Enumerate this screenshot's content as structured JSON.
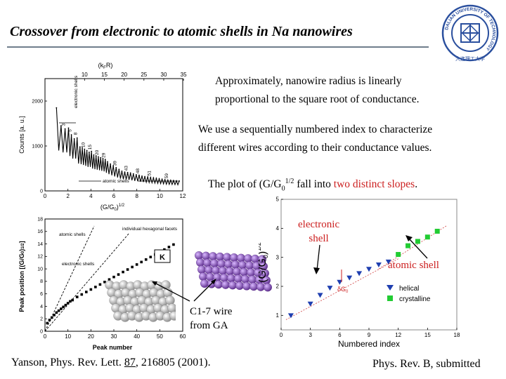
{
  "title": "Crossover from electronic to atomic shells in Na nanowires",
  "logo": {
    "name": "dalian-university-of-technology-seal",
    "ring_text": "DALIAN UNIVERSITY OF TECHNOLOGY",
    "chinese_text": "大连理工大学",
    "color": "#2a4f9e"
  },
  "paragraphs": {
    "p1_line1": "Approximately, nanowire radius is linearly",
    "p1_line2": "proportional to the square root of conductance.",
    "p2_line1": "We use a sequentially numbered index to characterize",
    "p2_line2": "different wires according to their conductance values.",
    "p3_a": "The plot of (G/G",
    "p3_sub": "0",
    "p3_sup": "1/2",
    "p3_b": " fall into ",
    "p3_highlight": "two distinct slopes",
    "p3_c": "."
  },
  "annotations": {
    "electronic_line1": "electronic",
    "electronic_line2": "shell",
    "atomic_shell": "atomic shell",
    "wire_line1": "C1-7 wire",
    "wire_line2": "from GA",
    "delta_g": "δG",
    "delta_g_sub": "0"
  },
  "citations": {
    "left_a": "Yanson, Phys. Rev. Lett. ",
    "left_vol": "87",
    "left_b": ", 216805 (2001).",
    "right": "Phys. Rev. B, submitted"
  },
  "colors": {
    "accent_red": "#cc1f1f",
    "helical": "#1f3fb0",
    "crystalline": "#22cc33",
    "rule": "#6f7d8c"
  },
  "chart_data": [
    {
      "type": "line",
      "name": "histogram",
      "title": "",
      "top_axis_label": "(k",
      "top_axis_label_sub": "F",
      "top_axis_label_end": "R)",
      "top_ticks": [
        "10",
        "15",
        "20",
        "25",
        "30",
        "35"
      ],
      "xlabel": "(G/G",
      "xlabel_sub": "0",
      "xlabel_sup": "1/2",
      "xlabel_end": ")",
      "ylabel": "Counts  [a. u.]",
      "x_ticks": [
        "0",
        "2",
        "4",
        "6",
        "8",
        "10",
        "12"
      ],
      "y_ticks": [
        "0",
        "1000",
        "2000"
      ],
      "xlim": [
        0,
        12
      ],
      "ylim": [
        0,
        2500
      ],
      "labels": {
        "electronic": "electronic shells",
        "atomic": "atomic shells"
      },
      "peak_labels": [
        "3",
        "5",
        "8",
        "10",
        "15",
        "20",
        "29",
        "39",
        "43",
        "48",
        "51",
        "59"
      ],
      "x": [
        1.0,
        1.4,
        1.75,
        2.05,
        2.3,
        2.55,
        2.8,
        3.05,
        3.25,
        3.45,
        3.65,
        3.85,
        4.05,
        4.25,
        4.45,
        4.65,
        4.85,
        5.05,
        5.25,
        5.45,
        5.7,
        5.95,
        6.2,
        6.45,
        6.7,
        6.95,
        7.2,
        7.45,
        7.7,
        7.95,
        8.2,
        8.45,
        8.7,
        8.95,
        9.2,
        9.45,
        9.7,
        9.95,
        10.2,
        10.45,
        10.7,
        10.95,
        11.2,
        11.45,
        11.7
      ],
      "values": [
        1850,
        1450,
        1380,
        1400,
        1250,
        1160,
        1180,
        980,
        960,
        930,
        900,
        860,
        880,
        800,
        780,
        760,
        740,
        720,
        700,
        650,
        600,
        560,
        520,
        480,
        440,
        420,
        410,
        400,
        380,
        360,
        350,
        330,
        320,
        310,
        300,
        290,
        280,
        270,
        260,
        250,
        240,
        235,
        230,
        225,
        220
      ]
    },
    {
      "type": "scatter",
      "name": "peak-position",
      "title": "",
      "xlabel": "Peak number",
      "ylabel": "Peak position [(G/G",
      "ylabel_sub": "0",
      "ylabel_end": ")",
      "ylabel_sup": "1/2",
      "ylabel_close": "]",
      "x_ticks": [
        "0",
        "10",
        "20",
        "30",
        "40",
        "50",
        "60"
      ],
      "y_ticks": [
        "0",
        "2",
        "4",
        "6",
        "8",
        "10",
        "12",
        "14",
        "16",
        "18"
      ],
      "xlim": [
        0,
        60
      ],
      "ylim": [
        0,
        18
      ],
      "labels": {
        "atomic": "atomic shells",
        "electronic": "electronic shells",
        "facets": "individual hexagonal facets",
        "k": "K"
      },
      "x": [
        1,
        2,
        3,
        4,
        5,
        6,
        7,
        8,
        9,
        10,
        11,
        12,
        14,
        16,
        18,
        20,
        22,
        24,
        26,
        28,
        30,
        32,
        34,
        36,
        38,
        40,
        42,
        44,
        46,
        48,
        50,
        52,
        54,
        56
      ],
      "values": [
        1.3,
        1.8,
        2.2,
        2.6,
        3.0,
        3.3,
        3.6,
        3.9,
        4.2,
        4.5,
        4.8,
        5.0,
        5.5,
        5.9,
        6.3,
        6.7,
        7.1,
        7.5,
        7.9,
        8.3,
        8.7,
        9.1,
        9.5,
        9.9,
        10.3,
        10.7,
        11.1,
        11.5,
        11.9,
        12.3,
        12.7,
        13.1,
        13.5,
        13.9
      ]
    },
    {
      "type": "scatter",
      "name": "numbered-index",
      "title": "",
      "xlabel": "Numbered index",
      "ylabel": "(G/G0)^1/2",
      "x_ticks": [
        "0",
        "3",
        "6",
        "9",
        "12",
        "15",
        "18"
      ],
      "y_ticks": [
        "1",
        "2",
        "3",
        "4",
        "5"
      ],
      "xlim": [
        0,
        18
      ],
      "ylim": [
        0.5,
        5
      ],
      "legend_position": "bottom-right",
      "series": [
        {
          "name": "helical",
          "x": [
            1,
            3,
            4,
            5,
            6,
            7,
            8,
            9,
            10,
            11
          ],
          "values": [
            1.0,
            1.4,
            1.7,
            1.95,
            2.15,
            2.3,
            2.45,
            2.6,
            2.75,
            2.85
          ]
        },
        {
          "name": "crystalline",
          "x": [
            12,
            13,
            14,
            15,
            16
          ],
          "values": [
            3.1,
            3.4,
            3.55,
            3.7,
            3.9
          ]
        }
      ]
    }
  ]
}
